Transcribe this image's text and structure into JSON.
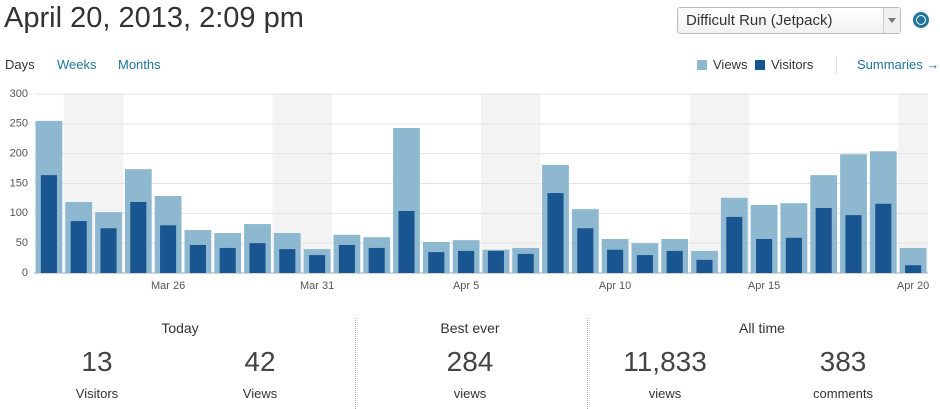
{
  "header": {
    "title": "April 20, 2013, 2:09 pm",
    "blog_select": "Difficult Run (Jetpack)"
  },
  "tabs": [
    "Days",
    "Weeks",
    "Months"
  ],
  "summaries_link": "Summaries →",
  "chart_data": {
    "type": "bar",
    "categories": [
      null,
      null,
      null,
      null,
      "Mar 26",
      null,
      null,
      null,
      null,
      "Mar 31",
      null,
      null,
      null,
      null,
      "Apr 5",
      null,
      null,
      null,
      null,
      "Apr 10",
      null,
      null,
      null,
      null,
      "Apr 15",
      null,
      null,
      null,
      null,
      "Apr 20"
    ],
    "series": [
      {
        "name": "Views",
        "color": "#8db8cf",
        "values": [
          255,
          119,
          102,
          174,
          129,
          72,
          67,
          82,
          67,
          40,
          64,
          60,
          243,
          52,
          55,
          39,
          42,
          181,
          107,
          57,
          50,
          57,
          37,
          126,
          114,
          117,
          164,
          199,
          204,
          42
        ]
      },
      {
        "name": "Visitors",
        "color": "#195590",
        "values": [
          164,
          87,
          75,
          119,
          80,
          47,
          42,
          50,
          40,
          30,
          47,
          42,
          104,
          35,
          37,
          37,
          32,
          134,
          75,
          39,
          30,
          37,
          22,
          94,
          57,
          59,
          109,
          97,
          116,
          13
        ]
      }
    ],
    "ylim": [
      0,
      300
    ],
    "yticks": [
      0,
      50,
      100,
      150,
      200,
      250,
      300
    ],
    "grid": true
  },
  "stats": [
    {
      "title": "Today",
      "items": [
        {
          "value": 13,
          "label": "Visitors"
        },
        {
          "value": 42,
          "label": "Views"
        }
      ]
    },
    {
      "title": "Best ever",
      "items": [
        {
          "value": 284,
          "label": "views"
        }
      ]
    },
    {
      "title": "All time",
      "items": [
        {
          "value": "11,833",
          "label": "views"
        },
        {
          "value": 383,
          "label": "comments"
        }
      ]
    }
  ]
}
